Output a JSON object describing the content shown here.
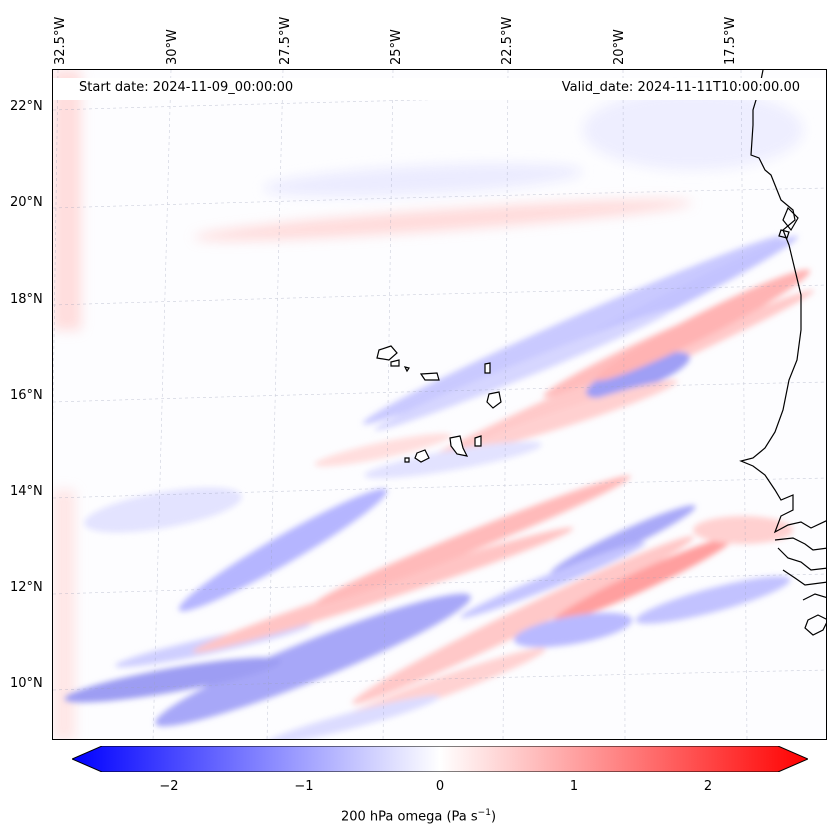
{
  "map": {
    "start_date": "Start date: 2024-11-09_00:00:00",
    "valid_date": "Valid_date: 2024-11-11T10:00:00.00",
    "lon_labels": [
      "32.5°W",
      "30°W",
      "27.5°W",
      "25°W",
      "22.5°W",
      "20°W",
      "17.5°W"
    ],
    "lat_labels": [
      "22°N",
      "20°N",
      "18°N",
      "16°N",
      "14°N",
      "12°N",
      "10°N"
    ],
    "coastline_color": "#000000",
    "positive_color": "#ff0000",
    "negative_color": "#0000ff"
  },
  "colorbar": {
    "ticks": [
      "−2",
      "−1",
      "0",
      "1",
      "2"
    ],
    "label_main": "200 hPa omega (Pa s",
    "label_sup": "−1",
    "label_end": ")",
    "min": -2.6,
    "max": 2.6,
    "extend": "both"
  }
}
